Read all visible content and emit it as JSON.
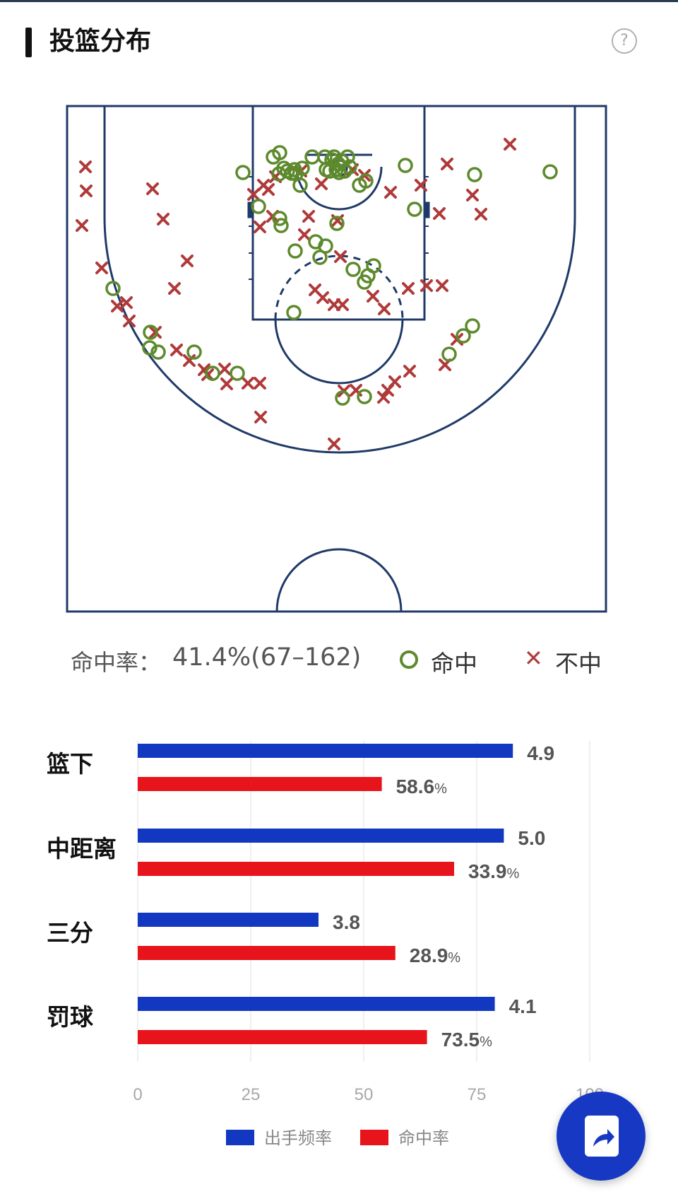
{
  "header": {
    "title": "投篮分布",
    "help_icon": "help-circle-icon"
  },
  "court": {
    "line_color": "#1f3a68",
    "make_color": "#5d8a2c",
    "miss_color": "#b03a3a",
    "made_shots": [
      [
        344,
        244
      ],
      [
        387,
        222
      ],
      [
        396,
        216
      ],
      [
        395,
        246
      ],
      [
        413,
        245
      ],
      [
        419,
        246
      ],
      [
        402,
        238
      ],
      [
        425,
        262
      ],
      [
        407,
        242
      ],
      [
        417,
        240
      ],
      [
        428,
        238
      ],
      [
        442,
        222
      ],
      [
        460,
        222
      ],
      [
        467,
        242
      ],
      [
        462,
        240
      ],
      [
        473,
        222
      ],
      [
        479,
        232
      ],
      [
        484,
        228
      ],
      [
        488,
        242
      ],
      [
        476,
        240
      ],
      [
        470,
        226
      ],
      [
        480,
        244
      ],
      [
        492,
        222
      ],
      [
        495,
        236
      ],
      [
        509,
        262
      ],
      [
        518,
        256
      ],
      [
        366,
        292
      ],
      [
        396,
        309
      ],
      [
        398,
        319
      ],
      [
        477,
        316
      ],
      [
        447,
        342
      ],
      [
        461,
        348
      ],
      [
        453,
        364
      ],
      [
        418,
        355
      ],
      [
        500,
        381
      ],
      [
        516,
        399
      ],
      [
        521,
        390
      ],
      [
        529,
        376
      ],
      [
        416,
        442
      ],
      [
        574,
        234
      ],
      [
        672,
        247
      ],
      [
        587,
        296
      ],
      [
        779,
        243
      ],
      [
        160,
        408
      ],
      [
        213,
        470
      ],
      [
        212,
        492
      ],
      [
        224,
        498
      ],
      [
        275,
        498
      ],
      [
        301,
        528
      ],
      [
        336,
        528
      ],
      [
        485,
        563
      ],
      [
        516,
        561
      ],
      [
        636,
        501
      ],
      [
        656,
        475
      ],
      [
        669,
        461
      ]
    ],
    "missed_shots": [
      [
        121,
        236
      ],
      [
        122,
        270
      ],
      [
        116,
        319
      ],
      [
        144,
        379
      ],
      [
        166,
        433
      ],
      [
        179,
        428
      ],
      [
        183,
        454
      ],
      [
        216,
        267
      ],
      [
        231,
        310
      ],
      [
        265,
        369
      ],
      [
        247,
        408
      ],
      [
        220,
        470
      ],
      [
        250,
        495
      ],
      [
        268,
        510
      ],
      [
        289,
        523
      ],
      [
        294,
        530
      ],
      [
        318,
        522
      ],
      [
        321,
        543
      ],
      [
        351,
        542
      ],
      [
        368,
        542
      ],
      [
        369,
        590
      ],
      [
        359,
        275
      ],
      [
        373,
        262
      ],
      [
        380,
        268
      ],
      [
        368,
        321
      ],
      [
        386,
        306
      ],
      [
        390,
        250
      ],
      [
        426,
        242
      ],
      [
        437,
        306
      ],
      [
        431,
        332
      ],
      [
        446,
        410
      ],
      [
        457,
        421
      ],
      [
        473,
        431
      ],
      [
        485,
        431
      ],
      [
        455,
        260
      ],
      [
        478,
        312
      ],
      [
        482,
        363
      ],
      [
        499,
        240
      ],
      [
        516,
        248
      ],
      [
        528,
        419
      ],
      [
        544,
        437
      ],
      [
        553,
        272
      ],
      [
        596,
        262
      ],
      [
        578,
        408
      ],
      [
        604,
        404
      ],
      [
        626,
        404
      ],
      [
        622,
        302
      ],
      [
        633,
        232
      ],
      [
        669,
        276
      ],
      [
        681,
        303
      ],
      [
        722,
        204
      ],
      [
        630,
        516
      ],
      [
        647,
        480
      ],
      [
        580,
        525
      ],
      [
        559,
        540
      ],
      [
        549,
        552
      ],
      [
        543,
        562
      ],
      [
        504,
        552
      ],
      [
        487,
        553
      ],
      [
        473,
        628
      ]
    ]
  },
  "summary": {
    "rate_label": "命中率：",
    "rate_value": "41.4%(67–162)",
    "make_label": "命中",
    "miss_label": "不中",
    "make_icon": "circle-icon",
    "miss_icon": "cross-icon"
  },
  "chart_data": {
    "type": "bar",
    "orientation": "horizontal",
    "categories": [
      "篮下",
      "中距离",
      "三分",
      "罚球"
    ],
    "series": [
      {
        "name": "出手频率",
        "color": "#1238c2",
        "values": [
          83,
          81,
          40,
          79
        ],
        "value_labels": [
          "4.9",
          "5.0",
          "3.8",
          "4.1"
        ]
      },
      {
        "name": "命中率",
        "color": "#e8141c",
        "values": [
          54,
          70,
          57,
          64
        ],
        "value_labels": [
          "58.6",
          "33.9",
          "28.9",
          "73.5"
        ],
        "label_suffix": "%"
      }
    ],
    "xlim": [
      0,
      100
    ],
    "xticks": [
      "0",
      "25",
      "50",
      "75",
      "100"
    ],
    "grid": true,
    "legend": "bottom"
  },
  "share_button": {
    "icon": "share-icon",
    "color": "#1638c2"
  }
}
